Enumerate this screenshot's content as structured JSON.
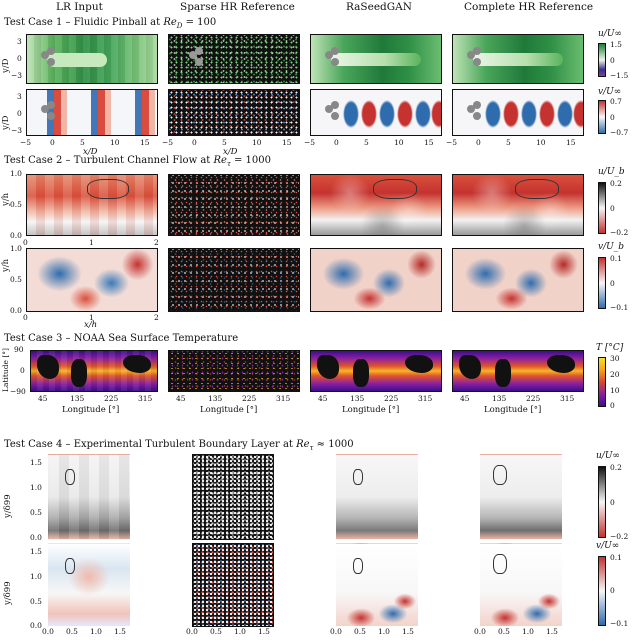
{
  "columns": [
    "LR Input",
    "Sparse HR Reference",
    "RaSeedGAN",
    "Complete HR Reference"
  ],
  "case1": {
    "title": "Test Case 1 – Fluidic Pinball at Re_D = 100",
    "ylabel": "y/D",
    "xlabel": "x/D",
    "yticks": [
      "3",
      "0",
      "−3"
    ],
    "xticks": [
      "−5",
      "0",
      "5",
      "10",
      "15"
    ],
    "cbar_u": {
      "label": "u/U∞",
      "max": "1.5",
      "mid": "0",
      "min": "−1.5"
    },
    "cbar_v": {
      "label": "v/U∞",
      "max": "0.7",
      "mid": "0",
      "min": "−0.7"
    }
  },
  "case2": {
    "title": "Test Case 2 – Turbulent Channel Flow at Re_τ = 1000",
    "ylabel": "y/h",
    "xlabel": "x/h",
    "yticks": [
      "1.0",
      "0.5",
      "0.0"
    ],
    "xticks": [
      "0",
      "1",
      "2"
    ],
    "cbar_u": {
      "label": "u/U_b",
      "max": "0.2",
      "mid": "0",
      "min": "−0.2"
    },
    "cbar_v": {
      "label": "v/U_b",
      "max": "0.1",
      "mid": "0",
      "min": "−0.1"
    }
  },
  "case3": {
    "title": "Test Case 3 – NOAA Sea Surface Temperature",
    "ylabel": "Latitude [°]",
    "xlabel": "Longitude [°]",
    "yticks": [
      "90",
      "0",
      "−90"
    ],
    "xticks": [
      "45",
      "135",
      "225",
      "315"
    ],
    "cbar": {
      "label": "T [°C]",
      "max": "30",
      "mid1": "20",
      "mid2": "10",
      "min": "0"
    }
  },
  "case4": {
    "title": "Test Case 4 – Experimental Turbulent Boundary Layer at Re_τ ≈ 1000",
    "ylabel": "y/δ99",
    "xlabel": "x/δ99",
    "yticks": [
      "1.5",
      "1.0",
      "0.5",
      "0.0"
    ],
    "xticks": [
      "0.0",
      "0.5",
      "1.0",
      "1.5"
    ],
    "cbar_u": {
      "label": "u/U∞",
      "max": "0.2",
      "mid": "0",
      "min": "−0.2"
    },
    "cbar_v": {
      "label": "v/U∞",
      "max": "0.1",
      "mid": "0",
      "min": "−0.1"
    }
  },
  "colors": {
    "green_hi": "#1a7f3a",
    "green_lo": "#e9f5e6",
    "red": "#c5322f",
    "blue": "#2f6cae",
    "plasma_lo": "#3b0f8c",
    "plasma_hi": "#f7e225"
  }
}
